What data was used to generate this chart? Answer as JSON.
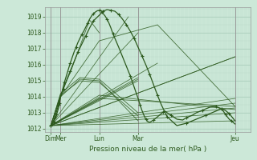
{
  "xlabel": "Pression niveau de la mer( hPa )",
  "bg_color": "#cce8d8",
  "grid_color_major": "#aaceba",
  "grid_color_minor": "#bbdacb",
  "line_color": "#2d5a1e",
  "ylim": [
    1011.8,
    1019.6
  ],
  "yticks": [
    1012,
    1013,
    1014,
    1015,
    1016,
    1017,
    1018,
    1019
  ],
  "day_x": [
    0,
    0.5,
    2.5,
    4.5,
    9.5
  ],
  "xtick_labels": [
    "Dim",
    "Mer",
    "Lun",
    "Mar",
    "Jeu"
  ],
  "xlim": [
    -0.3,
    10.3
  ],
  "fan_origin_x": 0.0,
  "fan_origin_y": 1012.2,
  "fan_endpoints": [
    [
      9.5,
      1012.5
    ],
    [
      9.5,
      1013.0
    ],
    [
      9.5,
      1013.3
    ],
    [
      9.5,
      1013.6
    ],
    [
      9.5,
      1013.9
    ],
    [
      9.5,
      1016.5
    ],
    [
      5.5,
      1016.1
    ],
    [
      4.5,
      1015.2
    ],
    [
      4.5,
      1015.1
    ],
    [
      4.5,
      1015.0
    ],
    [
      4.5,
      1018.0
    ],
    [
      4.0,
      1019.0
    ]
  ],
  "secondary_lines": [
    {
      "x": [
        0.0,
        0.5,
        1.5,
        2.5,
        4.5
      ],
      "y": [
        1012.2,
        1014.0,
        1015.1,
        1015.0,
        1012.5
      ]
    },
    {
      "x": [
        0.0,
        0.5,
        1.5,
        2.5,
        4.5
      ],
      "y": [
        1012.2,
        1014.1,
        1015.0,
        1014.9,
        1012.8
      ]
    },
    {
      "x": [
        0.0,
        0.5,
        1.5,
        2.5,
        4.5
      ],
      "y": [
        1012.2,
        1014.2,
        1015.2,
        1015.1,
        1013.0
      ]
    },
    {
      "x": [
        0.0,
        2.5,
        9.5
      ],
      "y": [
        1012.2,
        1014.1,
        1013.2
      ]
    },
    {
      "x": [
        0.0,
        2.5,
        9.5
      ],
      "y": [
        1012.2,
        1013.9,
        1013.4
      ]
    },
    {
      "x": [
        0.0,
        0.5,
        2.5,
        5.5,
        9.5
      ],
      "y": [
        1012.2,
        1014.0,
        1017.5,
        1018.5,
        1013.4
      ]
    },
    {
      "x": [
        0.0,
        0.5,
        1.0,
        2.0,
        2.5
      ],
      "y": [
        1012.2,
        1014.1,
        1015.5,
        1018.8,
        1018.0
      ]
    },
    {
      "x": [
        0.0,
        9.5
      ],
      "y": [
        1012.2,
        1016.5
      ]
    }
  ],
  "main_line_x": [
    0.0,
    0.1,
    0.2,
    0.3,
    0.4,
    0.5,
    0.65,
    0.8,
    1.0,
    1.2,
    1.4,
    1.6,
    1.8,
    2.0,
    2.2,
    2.5,
    2.7,
    2.9,
    3.1,
    3.3,
    3.5,
    3.7,
    3.9,
    4.1,
    4.3,
    4.5,
    4.7,
    4.9,
    5.1,
    5.3,
    5.5,
    5.7,
    6.0,
    6.5,
    7.0,
    7.5,
    8.0,
    8.5,
    8.8,
    9.0,
    9.2,
    9.5
  ],
  "main_line_y": [
    1012.2,
    1012.4,
    1012.7,
    1013.1,
    1013.5,
    1014.0,
    1014.5,
    1015.0,
    1015.6,
    1016.2,
    1016.8,
    1017.3,
    1017.8,
    1018.3,
    1018.75,
    1019.1,
    1019.35,
    1019.45,
    1019.4,
    1019.35,
    1019.15,
    1018.85,
    1018.5,
    1018.1,
    1017.65,
    1017.1,
    1016.55,
    1016.0,
    1015.4,
    1014.75,
    1014.1,
    1013.5,
    1012.75,
    1012.2,
    1012.35,
    1012.6,
    1012.85,
    1013.1,
    1013.25,
    1013.15,
    1012.95,
    1012.5
  ],
  "jagged_line_x": [
    0.0,
    0.05,
    0.1,
    0.15,
    0.2,
    0.25,
    0.3,
    0.35,
    0.4,
    0.45,
    0.5,
    0.6,
    0.7,
    0.8,
    0.9,
    1.0,
    1.1,
    1.2,
    1.3,
    1.4,
    1.5,
    1.6,
    1.7,
    1.8,
    1.9,
    2.0,
    2.1,
    2.2,
    2.3,
    2.4,
    2.5,
    2.55,
    2.6,
    2.65,
    2.7,
    2.8,
    2.9,
    3.0,
    3.1,
    3.2,
    3.5,
    3.8,
    4.1,
    4.3,
    4.5,
    4.6,
    4.7,
    4.8,
    4.9,
    5.0,
    5.1,
    5.3,
    5.5,
    5.7,
    5.8,
    5.9,
    6.0,
    6.2,
    6.5,
    6.8,
    7.0,
    7.3,
    7.5,
    7.8,
    8.0,
    8.2,
    8.5,
    8.7,
    8.9,
    9.0,
    9.1,
    9.2,
    9.3,
    9.4,
    9.5
  ],
  "jagged_line_y": [
    1012.2,
    1012.25,
    1012.35,
    1012.45,
    1012.6,
    1012.7,
    1012.9,
    1013.1,
    1013.3,
    1013.6,
    1014.0,
    1014.4,
    1014.9,
    1015.3,
    1015.7,
    1016.1,
    1016.45,
    1016.8,
    1017.1,
    1017.4,
    1017.65,
    1017.9,
    1018.1,
    1018.35,
    1018.6,
    1018.85,
    1019.05,
    1019.2,
    1019.3,
    1019.38,
    1019.4,
    1019.42,
    1019.38,
    1019.3,
    1019.2,
    1019.05,
    1018.85,
    1018.6,
    1018.3,
    1017.95,
    1017.1,
    1016.2,
    1015.3,
    1014.6,
    1013.9,
    1013.5,
    1013.15,
    1012.85,
    1012.6,
    1012.45,
    1012.4,
    1012.55,
    1012.75,
    1012.95,
    1013.05,
    1013.1,
    1013.0,
    1012.85,
    1012.6,
    1012.55,
    1012.7,
    1012.85,
    1013.0,
    1013.15,
    1013.25,
    1013.35,
    1013.4,
    1013.3,
    1013.1,
    1012.9,
    1012.75,
    1012.6,
    1012.5,
    1012.4,
    1012.3
  ]
}
